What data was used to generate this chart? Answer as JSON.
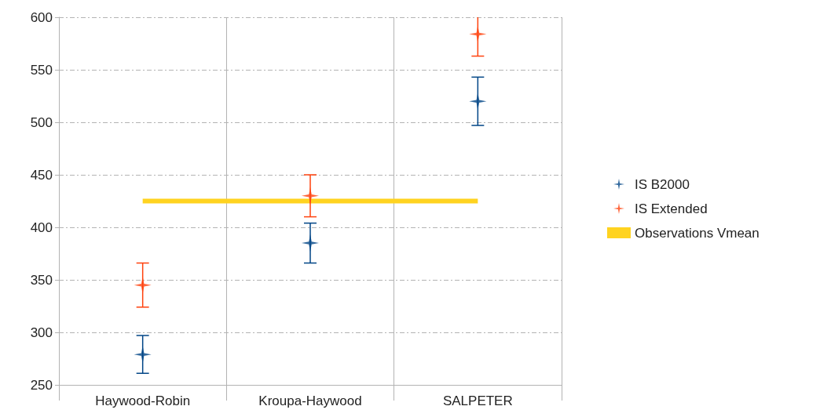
{
  "chart_data": {
    "type": "scatter",
    "categories": [
      "Haywood-Robin",
      "Kroupa-Haywood",
      "SALPETER"
    ],
    "series": [
      {
        "name": "IS B2000",
        "color": "#004586",
        "values": [
          279,
          385,
          520
        ],
        "errors": [
          18,
          19,
          23
        ]
      },
      {
        "name": "IS Extended",
        "color": "#ff420e",
        "values": [
          345,
          430,
          584
        ],
        "errors": [
          21,
          20,
          21
        ]
      },
      {
        "name": "Observations Vmean",
        "type": "line",
        "color": "#ffd320",
        "values": [
          425,
          425,
          425
        ],
        "marker": "none"
      }
    ],
    "ylim": [
      250,
      600
    ],
    "yticks": [
      250,
      300,
      350,
      400,
      450,
      500,
      550,
      600
    ],
    "grid": true,
    "legend": "right",
    "marker": "star"
  }
}
